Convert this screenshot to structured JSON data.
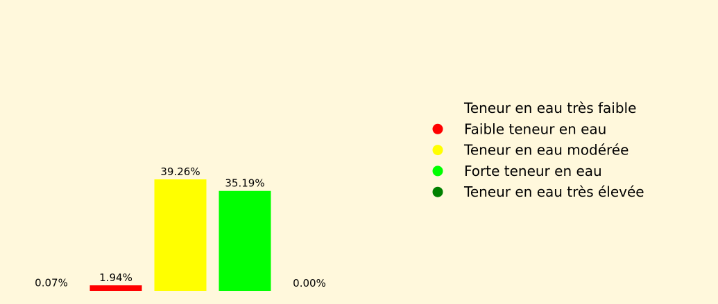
{
  "chart_data": {
    "type": "bar",
    "categories": [
      "Teneur en eau très faible",
      "Faible teneur en eau",
      "Teneur en eau modérée",
      "Forte teneur en eau",
      "Teneur en eau très élevée"
    ],
    "values": [
      0.07,
      1.94,
      39.26,
      35.19,
      0.0
    ],
    "value_labels": [
      "0.07%",
      "1.94%",
      "39.26%",
      "35.19%",
      "0.00%"
    ],
    "colors": [
      "#fff8dc",
      "#ff0000",
      "#ffff00",
      "#00ff00",
      "#008000"
    ],
    "ylim": [
      0,
      100
    ],
    "axes_visible": false,
    "grid": false,
    "legend_position": "right",
    "title": "",
    "xlabel": "",
    "ylabel": ""
  },
  "legend": {
    "items": [
      {
        "label": "Teneur en eau très faible",
        "color": "#fff8dc"
      },
      {
        "label": "Faible teneur en eau",
        "color": "#ff0000"
      },
      {
        "label": "Teneur en eau modérée",
        "color": "#ffff00"
      },
      {
        "label": "Forte teneur en eau",
        "color": "#00ff00"
      },
      {
        "label": "Teneur en eau très élevée",
        "color": "#008000"
      }
    ]
  }
}
